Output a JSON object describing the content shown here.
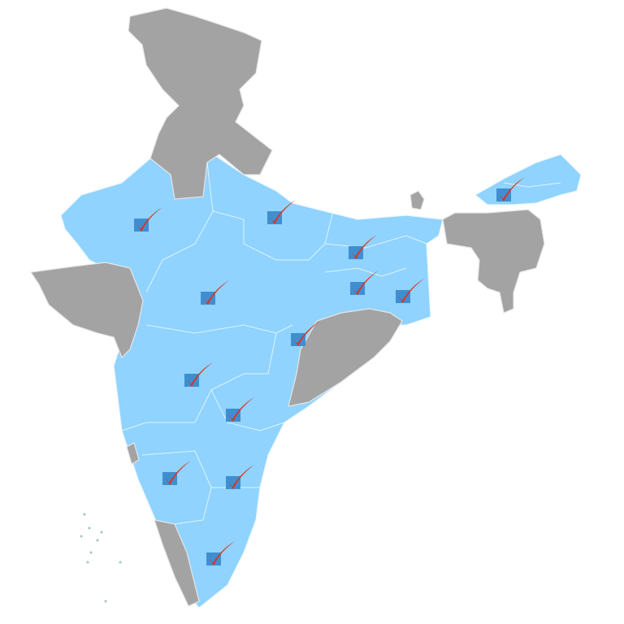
{
  "map": {
    "highlighted_color": "#8fd3fe",
    "unhighlighted_color": "#a3a3a3",
    "border_color": "#e8f6ff",
    "marker": {
      "icon": "checkmark-icon",
      "box_color": "#3f8fd0",
      "check_color": "#e0301e"
    }
  }
}
